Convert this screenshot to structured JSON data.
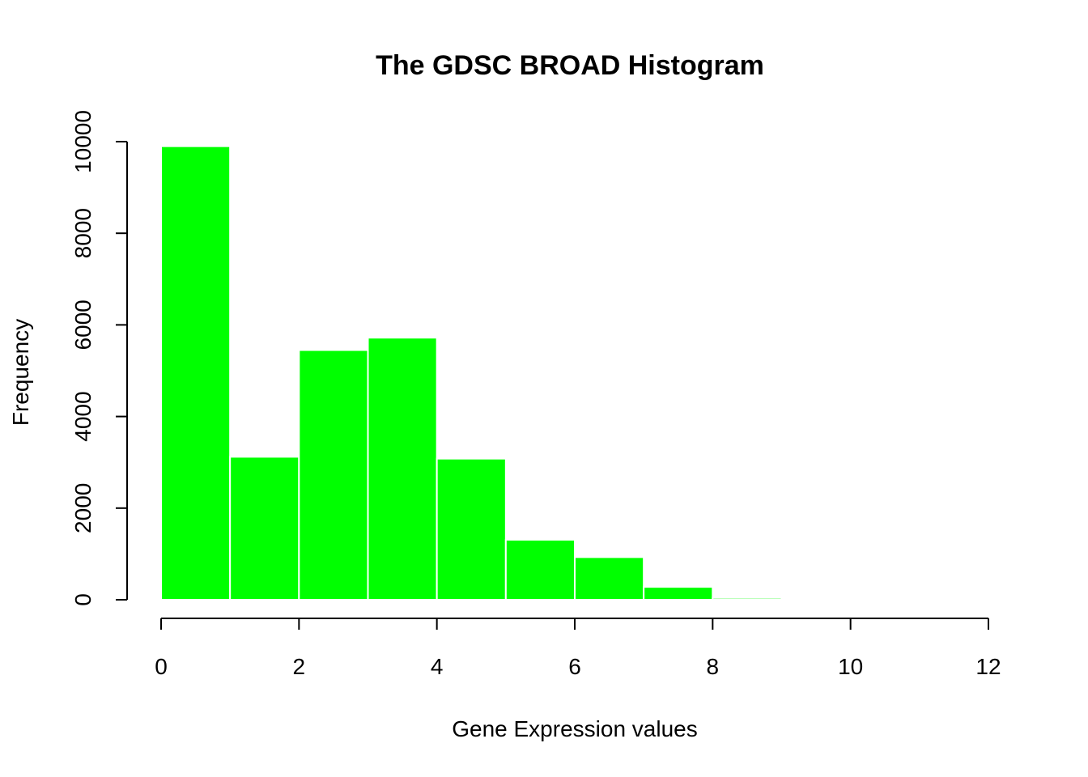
{
  "chart_data": {
    "type": "bar",
    "title": "The GDSC BROAD Histogram",
    "xlabel": "Gene Expression values",
    "ylabel": "Frequency",
    "xlim": [
      0,
      12
    ],
    "ylim": [
      0,
      10000
    ],
    "x_ticks": [
      "0",
      "2",
      "4",
      "6",
      "8",
      "10",
      "12"
    ],
    "y_ticks": [
      "0",
      "2000",
      "4000",
      "6000",
      "8000",
      "10000"
    ],
    "bins": [
      {
        "start": 0,
        "end": 1,
        "value": 9900
      },
      {
        "start": 1,
        "end": 2,
        "value": 3120
      },
      {
        "start": 2,
        "end": 3,
        "value": 5450
      },
      {
        "start": 3,
        "end": 4,
        "value": 5720
      },
      {
        "start": 4,
        "end": 5,
        "value": 3080
      },
      {
        "start": 5,
        "end": 6,
        "value": 1310
      },
      {
        "start": 6,
        "end": 7,
        "value": 930
      },
      {
        "start": 7,
        "end": 8,
        "value": 280
      },
      {
        "start": 8,
        "end": 9,
        "value": 40
      }
    ],
    "bar_color": "#00FF00",
    "bar_border_color": "#FFFFFF",
    "grid": false,
    "legend": "none"
  }
}
